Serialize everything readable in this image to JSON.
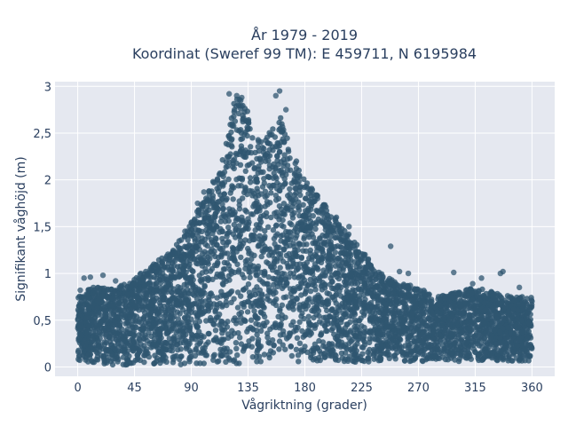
{
  "chart_data": {
    "type": "scatter",
    "title_line1": "År 1979 - 2019",
    "title_line2": "Koordinat (Sweref 99 TM): E 459711, N 6195984",
    "xlabel": "Vågriktning (grader)",
    "ylabel": "Signifikant våghöjd (m)",
    "xlim": [
      -18,
      378
    ],
    "ylim": [
      -0.1,
      3.05
    ],
    "x_ticks": [
      0,
      45,
      90,
      135,
      180,
      225,
      270,
      315,
      360
    ],
    "x_tick_labels": [
      "0",
      "45",
      "90",
      "135",
      "180",
      "225",
      "270",
      "315",
      "360"
    ],
    "y_ticks": [
      0,
      0.5,
      1,
      1.5,
      2,
      2.5,
      3
    ],
    "y_tick_labels": [
      "0",
      "0,5",
      "1",
      "1,5",
      "2",
      "2,5",
      "3"
    ],
    "grid": true,
    "colors": {
      "marker": "#2f5670",
      "plot_bg": "#e5e8f0",
      "grid": "#ffffff",
      "text": "#2a3f5f"
    },
    "envelope": {
      "x": [
        0,
        10,
        20,
        30,
        45,
        60,
        75,
        90,
        100,
        110,
        120,
        125,
        130,
        135,
        140,
        150,
        160,
        170,
        180,
        195,
        210,
        225,
        240,
        255,
        270,
        285,
        300,
        315,
        330,
        345,
        360
      ],
      "y_max": [
        0.75,
        0.85,
        0.85,
        0.85,
        0.95,
        1.1,
        1.25,
        1.55,
        1.8,
        2.05,
        2.55,
        2.9,
        2.9,
        2.8,
        2.4,
        2.5,
        2.7,
        2.3,
        2.0,
        1.75,
        1.5,
        1.25,
        1.0,
        0.9,
        0.85,
        0.75,
        0.8,
        0.85,
        0.8,
        0.75,
        0.75
      ],
      "y_min": [
        0.05,
        0.05,
        0.03,
        0.02,
        0.02,
        0.02,
        0.02,
        0.02,
        0.02,
        0.03,
        0.03,
        0.03,
        0.03,
        0.03,
        0.03,
        0.05,
        0.05,
        0.05,
        0.05,
        0.05,
        0.05,
        0.05,
        0.06,
        0.06,
        0.06,
        0.06,
        0.06,
        0.06,
        0.06,
        0.06,
        0.06
      ]
    },
    "outlier_points": [
      [
        120,
        2.92
      ],
      [
        126,
        2.9
      ],
      [
        130,
        2.88
      ],
      [
        160,
        2.95
      ],
      [
        157,
        2.9
      ],
      [
        165,
        2.75
      ],
      [
        100,
        1.87
      ],
      [
        95,
        1.75
      ],
      [
        85,
        1.45
      ],
      [
        75,
        1.22
      ],
      [
        60,
        1.05
      ],
      [
        50,
        1.0
      ],
      [
        190,
        1.8
      ],
      [
        205,
        1.6
      ],
      [
        215,
        1.5
      ],
      [
        248,
        1.29
      ],
      [
        255,
        1.02
      ],
      [
        262,
        1.0
      ],
      [
        298,
        1.01
      ],
      [
        313,
        0.89
      ],
      [
        320,
        0.95
      ],
      [
        335,
        1.0
      ],
      [
        337,
        1.02
      ],
      [
        350,
        0.85
      ],
      [
        2,
        0.82
      ],
      [
        5,
        0.95
      ],
      [
        10,
        0.96
      ],
      [
        20,
        0.98
      ],
      [
        30,
        0.92
      ],
      [
        360,
        0.7
      ]
    ]
  }
}
